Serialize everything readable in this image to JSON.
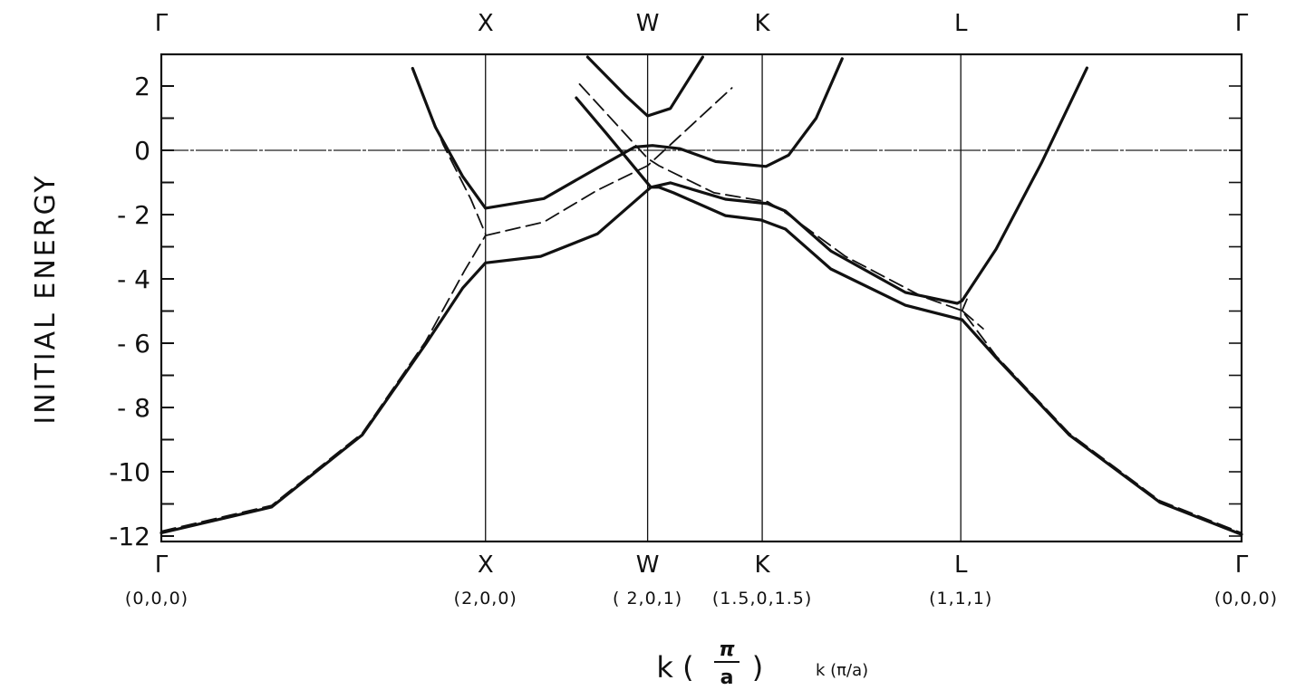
{
  "chart_data": {
    "type": "line",
    "title": "",
    "xlabel": "k (π/a)",
    "xlabel_main": "k (",
    "xlabel_frac_num": "π",
    "xlabel_frac_den": "a",
    "xlabel_close": ")",
    "ylabel": "INITIAL ENERGY",
    "ylim": [
      -12.15,
      3
    ],
    "xlim": [
      0,
      6.664
    ],
    "yticks": [
      {
        "value": 2,
        "label": "2"
      },
      {
        "value": 0,
        "label": "0"
      },
      {
        "value": -2,
        "label": "- 2"
      },
      {
        "value": -4,
        "label": "- 4"
      },
      {
        "value": -6,
        "label": "- 6"
      },
      {
        "value": -8,
        "label": "- 8"
      },
      {
        "value": -10,
        "label": "-10"
      },
      {
        "value": -12,
        "label": "-12"
      }
    ],
    "minor_yticks": [
      1,
      -1,
      -3,
      -5,
      -7,
      -9,
      -11
    ],
    "symmetry_points": [
      {
        "k": 0,
        "top": "Γ",
        "bottom": "Γ",
        "coord": "(0,0,0)"
      },
      {
        "k": 2,
        "top": "X",
        "bottom": "X",
        "coord": "(2,0,0)"
      },
      {
        "k": 3,
        "top": "W",
        "bottom": "W",
        "coord": "( 2,0,1)"
      },
      {
        "k": 3.707,
        "top": "K",
        "bottom": "K",
        "coord": "(1.5,0,1.5)"
      },
      {
        "k": 4.932,
        "top": "L",
        "bottom": "L",
        "coord": "(1,1,1)"
      },
      {
        "k": 6.664,
        "top": "Γ",
        "bottom": "Γ",
        "coord": "(0,0,0)"
      }
    ],
    "zero_line": 0,
    "series": [
      {
        "name": "band-1",
        "style": "solid",
        "points": [
          [
            0,
            -11.9
          ],
          [
            0.68,
            -11.1
          ],
          [
            1.24,
            -8.85
          ],
          [
            1.63,
            -6.03
          ],
          [
            1.86,
            -4.28
          ],
          [
            2.0,
            -3.5
          ],
          [
            2.34,
            -3.3
          ],
          [
            2.69,
            -2.6
          ],
          [
            3.02,
            -1.15
          ],
          [
            3.07,
            -1.15
          ],
          [
            3.16,
            -1.32
          ],
          [
            3.48,
            -2.03
          ],
          [
            3.7,
            -2.17
          ],
          [
            3.85,
            -2.45
          ],
          [
            4.13,
            -3.69
          ],
          [
            4.59,
            -4.82
          ],
          [
            4.94,
            -5.27
          ],
          [
            5.15,
            -6.45
          ],
          [
            5.6,
            -8.85
          ],
          [
            6.16,
            -10.95
          ],
          [
            6.664,
            -11.95
          ]
        ]
      },
      {
        "name": "band-2",
        "style": "solid",
        "points": [
          [
            1.55,
            2.55
          ],
          [
            1.69,
            0.73
          ],
          [
            1.86,
            -0.82
          ],
          [
            2.0,
            -1.8
          ],
          [
            2.36,
            -1.5
          ],
          [
            2.69,
            -0.55
          ],
          [
            2.92,
            0.1
          ],
          [
            3.03,
            0.15
          ],
          [
            3.2,
            0.05
          ],
          [
            3.42,
            -0.35
          ],
          [
            3.73,
            -0.5
          ],
          [
            3.87,
            -0.15
          ],
          [
            4.04,
            1.0
          ],
          [
            4.2,
            2.85
          ]
        ]
      },
      {
        "name": "band-3",
        "style": "solid",
        "points": [
          [
            2.63,
            2.9
          ],
          [
            2.86,
            1.72
          ],
          [
            3.0,
            1.07
          ],
          [
            3.14,
            1.3
          ],
          [
            3.34,
            2.9
          ]
        ]
      },
      {
        "name": "band-4",
        "style": "solid",
        "points": [
          [
            2.56,
            1.63
          ],
          [
            2.75,
            0.5
          ],
          [
            3.02,
            -1.15
          ],
          [
            3.14,
            -1.01
          ],
          [
            3.48,
            -1.52
          ],
          [
            3.74,
            -1.66
          ],
          [
            3.85,
            -1.89
          ],
          [
            4.13,
            -3.13
          ],
          [
            4.59,
            -4.42
          ],
          [
            4.91,
            -4.76
          ],
          [
            4.94,
            -4.68
          ],
          [
            5.15,
            -3.07
          ],
          [
            5.43,
            -0.39
          ],
          [
            5.71,
            2.56
          ]
        ]
      },
      {
        "name": "free-electron-1",
        "style": "dashed",
        "points": [
          [
            0,
            -11.85
          ],
          [
            0.68,
            -11.05
          ],
          [
            1.24,
            -8.8
          ],
          [
            1.63,
            -5.95
          ],
          [
            1.87,
            -3.75
          ],
          [
            2.0,
            -2.65
          ]
        ]
      },
      {
        "name": "free-electron-2",
        "style": "dashed",
        "points": [
          [
            1.58,
            2.14
          ],
          [
            1.74,
            0.17
          ],
          [
            1.91,
            -1.52
          ],
          [
            2.0,
            -2.6
          ]
        ]
      },
      {
        "name": "free-electron-3",
        "style": "dashed",
        "points": [
          [
            2.0,
            -2.65
          ],
          [
            2.36,
            -2.23
          ],
          [
            2.69,
            -1.24
          ],
          [
            3.0,
            -0.48
          ],
          [
            3.52,
            1.94
          ]
        ]
      },
      {
        "name": "free-electron-4",
        "style": "dashed",
        "points": [
          [
            2.58,
            2.06
          ],
          [
            3.0,
            -0.25
          ],
          [
            3.07,
            -0.48
          ],
          [
            3.41,
            -1.32
          ],
          [
            3.74,
            -1.6
          ],
          [
            3.85,
            -1.94
          ],
          [
            4.22,
            -3.3
          ],
          [
            4.69,
            -4.54
          ],
          [
            4.94,
            -4.99
          ],
          [
            5.15,
            -6.4
          ],
          [
            5.6,
            -8.8
          ],
          [
            6.16,
            -10.9
          ],
          [
            6.664,
            -11.9
          ]
        ]
      },
      {
        "name": "free-electron-5",
        "style": "dashed",
        "points": [
          [
            4.94,
            -4.99
          ],
          [
            4.97,
            -4.63
          ]
        ]
      },
      {
        "name": "free-electron-6",
        "style": "dashed",
        "points": [
          [
            4.94,
            -4.99
          ],
          [
            5.07,
            -5.55
          ]
        ]
      }
    ]
  }
}
